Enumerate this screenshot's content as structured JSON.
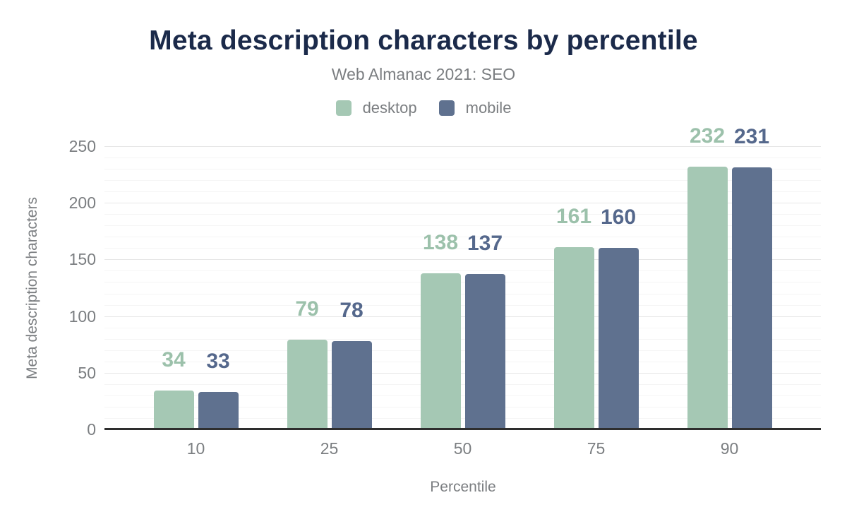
{
  "title": "Meta description characters by percentile",
  "subtitle": "Web Almanac 2021: SEO",
  "colors": {
    "title_text": "#1b2a4a",
    "muted_text": "#7b7e81",
    "desktop": "#a5c8b4",
    "desktop_label": "#9cc1ab",
    "mobile": "#5f718f",
    "mobile_label": "#55688c",
    "grid_major": "#e6e6e6",
    "grid_minor": "#f5f5f5",
    "axis_line": "#2e2e2e",
    "background": "#ffffff"
  },
  "chart_data": {
    "type": "bar",
    "categories": [
      "10",
      "25",
      "50",
      "75",
      "90"
    ],
    "series": [
      {
        "name": "desktop",
        "color": "#a5c8b4",
        "label_color": "#9cc1ab",
        "values": [
          34,
          79,
          138,
          161,
          232
        ]
      },
      {
        "name": "mobile",
        "color": "#5f718f",
        "label_color": "#55688c",
        "values": [
          33,
          78,
          137,
          160,
          231
        ]
      }
    ],
    "title": "Meta description characters by percentile",
    "subtitle": "Web Almanac 2021: SEO",
    "xlabel": "Percentile",
    "ylabel": "Meta description characters",
    "ylim": [
      0,
      250
    ],
    "yticks": [
      0,
      50,
      100,
      150,
      200,
      250
    ],
    "minor_tick_step": 10,
    "grid": "horizontal",
    "legend_position": "top",
    "value_labels": "above-bars"
  }
}
